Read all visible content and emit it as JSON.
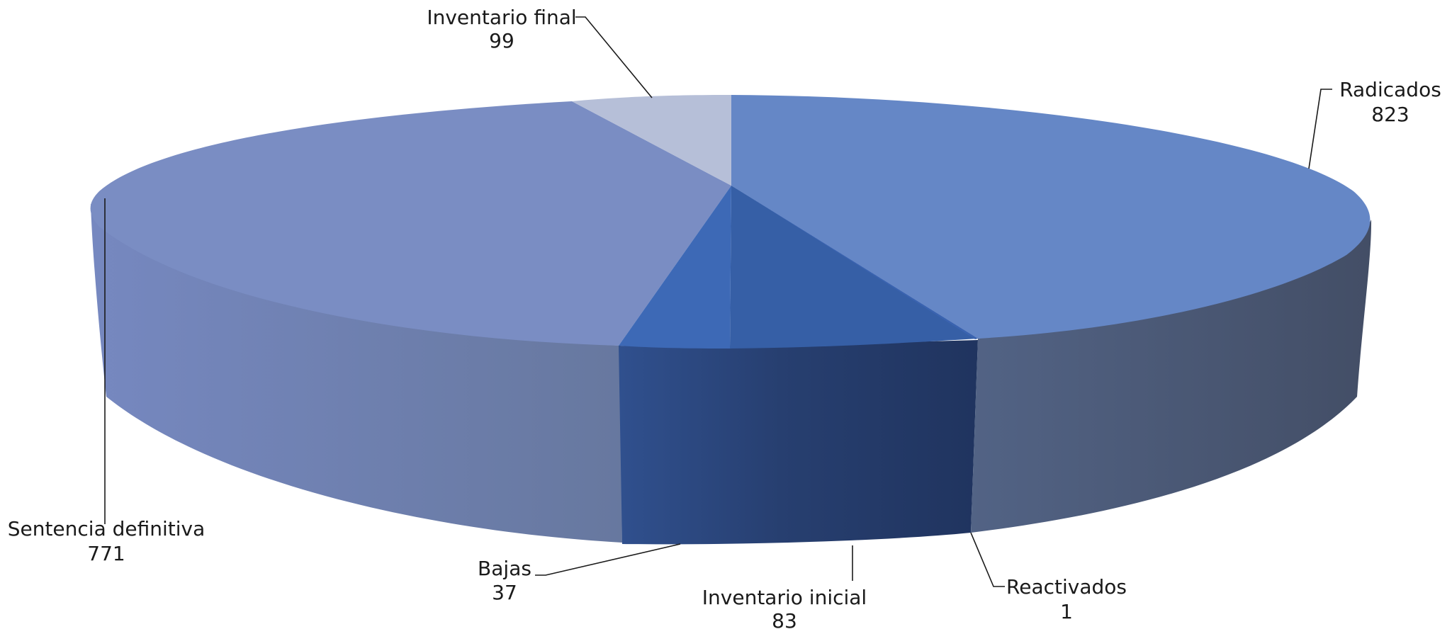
{
  "chart_data": {
    "type": "pie",
    "style": "3d-exploded-ellipse",
    "title": "",
    "legend": "none",
    "slices": [
      {
        "label": "Radicados",
        "value": 823,
        "color": "#6587c6"
      },
      {
        "label": "Reactivados",
        "value": 1,
        "color": "#3a63b0"
      },
      {
        "label": "Inventario inicial",
        "value": 83,
        "color": "#365fa6"
      },
      {
        "label": "Bajas",
        "value": 37,
        "color": "#3d69b6"
      },
      {
        "label": "Sentencia definitiva",
        "value": 771,
        "color": "#7a8dc3"
      },
      {
        "label": "Inventario final",
        "value": 99,
        "color": "#b6bfd8"
      }
    ]
  }
}
